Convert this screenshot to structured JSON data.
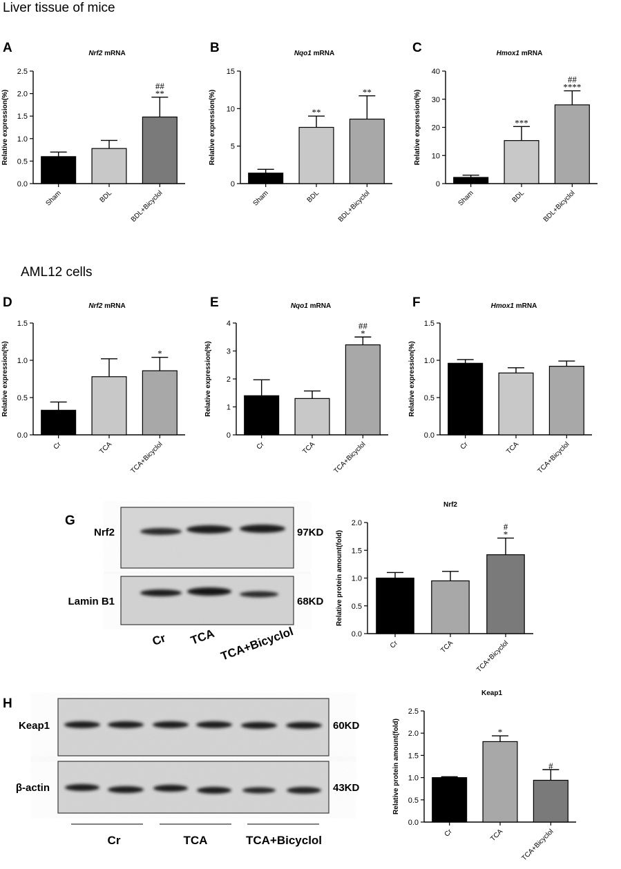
{
  "sections": {
    "liver": "Liver tissue of mice",
    "cells": "AML12 cells"
  },
  "colors": {
    "black": "#000000",
    "light_gray": "#c8c8c8",
    "mid_gray": "#a8a8a8",
    "dark_gray": "#7a7a7a"
  },
  "chart_data": [
    {
      "id": "A",
      "type": "bar",
      "title": "Nrf2",
      "title_suffix": " mRNA",
      "title_italic": true,
      "ylabel": "Relative expression(%)",
      "ylim": [
        0,
        2.5
      ],
      "yticks": [
        "0.0",
        "0.5",
        "1.0",
        "1.5",
        "2.0",
        "2.5"
      ],
      "ytick_values": [
        0,
        0.5,
        1.0,
        1.5,
        2.0,
        2.5
      ],
      "categories": [
        "Sham",
        "BDL",
        "BDL+Bicyclol"
      ],
      "values": [
        0.6,
        0.78,
        1.48
      ],
      "errors": [
        0.1,
        0.18,
        0.44
      ],
      "colors": [
        "#000000",
        "#c8c8c8",
        "#7a7a7a"
      ],
      "annotations": [
        [
          "",
          ""
        ],
        [
          "",
          ""
        ],
        [
          "##",
          "**"
        ]
      ],
      "rotate_labels": true
    },
    {
      "id": "B",
      "type": "bar",
      "title": "Nqo1",
      "title_suffix": " mRNA",
      "title_italic": true,
      "ylabel": "Relative expression(%)",
      "ylim": [
        0,
        15
      ],
      "yticks": [
        "0",
        "5",
        "10",
        "15"
      ],
      "ytick_values": [
        0,
        5,
        10,
        15
      ],
      "categories": [
        "Sham",
        "BDL",
        "BDL+Bicyclol"
      ],
      "values": [
        1.4,
        7.5,
        8.6
      ],
      "errors": [
        0.5,
        1.5,
        3.1
      ],
      "colors": [
        "#000000",
        "#c8c8c8",
        "#a8a8a8"
      ],
      "annotations": [
        [
          "",
          ""
        ],
        [
          "",
          "**"
        ],
        [
          "",
          "**"
        ]
      ],
      "rotate_labels": true
    },
    {
      "id": "C",
      "type": "bar",
      "title": "Hmox1",
      "title_suffix": " mRNA",
      "title_italic": true,
      "ylabel": "Relative expression(%)",
      "ylim": [
        0,
        40
      ],
      "yticks": [
        "0",
        "10",
        "20",
        "30",
        "40"
      ],
      "ytick_values": [
        0,
        10,
        20,
        30,
        40
      ],
      "categories": [
        "Sham",
        "BDL",
        "BDL+Bicyclol"
      ],
      "values": [
        2.2,
        15.3,
        28.0
      ],
      "errors": [
        0.8,
        5.0,
        5.0
      ],
      "colors": [
        "#000000",
        "#c8c8c8",
        "#a8a8a8"
      ],
      "annotations": [
        [
          "",
          ""
        ],
        [
          "",
          "***"
        ],
        [
          "##",
          "****"
        ]
      ],
      "rotate_labels": true
    },
    {
      "id": "D",
      "type": "bar",
      "title": "Nrf2",
      "title_suffix": " mRNA",
      "title_italic": true,
      "ylabel": "Relative expression(%)",
      "ylim": [
        0,
        1.5
      ],
      "yticks": [
        "0.0",
        "0.5",
        "1.0",
        "1.5"
      ],
      "ytick_values": [
        0,
        0.5,
        1.0,
        1.5
      ],
      "categories": [
        "Cr",
        "TCA",
        "TCA+Bicyclol"
      ],
      "values": [
        0.33,
        0.78,
        0.86
      ],
      "errors": [
        0.11,
        0.24,
        0.18
      ],
      "colors": [
        "#000000",
        "#c8c8c8",
        "#a8a8a8"
      ],
      "annotations": [
        [
          "",
          ""
        ],
        [
          "",
          ""
        ],
        [
          "",
          "*"
        ]
      ],
      "rotate_labels": true
    },
    {
      "id": "E",
      "type": "bar",
      "title": "Nqo1",
      "title_suffix": " mRNA",
      "title_italic": true,
      "ylabel": "Relative expression(%)",
      "ylim": [
        0,
        4
      ],
      "yticks": [
        "0",
        "1",
        "2",
        "3",
        "4"
      ],
      "ytick_values": [
        0,
        1,
        2,
        3,
        4
      ],
      "categories": [
        "Cr",
        "TCA",
        "TCA+Bicyclol"
      ],
      "values": [
        1.4,
        1.3,
        3.22
      ],
      "errors": [
        0.57,
        0.27,
        0.28
      ],
      "colors": [
        "#000000",
        "#c8c8c8",
        "#a8a8a8"
      ],
      "annotations": [
        [
          "",
          ""
        ],
        [
          "",
          ""
        ],
        [
          "##",
          "*"
        ]
      ],
      "rotate_labels": true
    },
    {
      "id": "F",
      "type": "bar",
      "title": "Hmox1",
      "title_suffix": " mRNA",
      "title_italic": true,
      "ylabel": "Relative expression(%)",
      "ylim": [
        0,
        1.5
      ],
      "yticks": [
        "0.0",
        "0.5",
        "1.0",
        "1.5"
      ],
      "ytick_values": [
        0,
        0.5,
        1.0,
        1.5
      ],
      "categories": [
        "Cr",
        "TCA",
        "TCA+Bicyclol"
      ],
      "values": [
        0.96,
        0.83,
        0.92
      ],
      "errors": [
        0.05,
        0.07,
        0.07
      ],
      "colors": [
        "#000000",
        "#c8c8c8",
        "#a8a8a8"
      ],
      "annotations": [
        [
          "",
          ""
        ],
        [
          "",
          ""
        ],
        [
          "",
          ""
        ]
      ],
      "rotate_labels": true
    },
    {
      "id": "G",
      "type": "bar",
      "title": "Nrf2",
      "title_suffix": "",
      "title_italic": false,
      "ylabel": "Relative protein amount(fold)",
      "ylim": [
        0,
        2.0
      ],
      "yticks": [
        "0.0",
        "0.5",
        "1.0",
        "1.5",
        "2.0"
      ],
      "ytick_values": [
        0,
        0.5,
        1.0,
        1.5,
        2.0
      ],
      "categories": [
        "Cr",
        "TCA",
        "TCA+Bicyclol"
      ],
      "values": [
        1.0,
        0.95,
        1.42
      ],
      "errors": [
        0.1,
        0.17,
        0.3
      ],
      "colors": [
        "#000000",
        "#a8a8a8",
        "#7a7a7a"
      ],
      "annotations": [
        [
          "",
          ""
        ],
        [
          "",
          ""
        ],
        [
          "#",
          "*"
        ]
      ],
      "rotate_labels": true
    },
    {
      "id": "H",
      "type": "bar",
      "title": "Keap1",
      "title_suffix": "",
      "title_italic": false,
      "ylabel": "Relative protein amount(fold)",
      "ylim": [
        0,
        2.5
      ],
      "yticks": [
        "0.0",
        "0.5",
        "1.0",
        "1.5",
        "2.0",
        "2.5"
      ],
      "ytick_values": [
        0,
        0.5,
        1.0,
        1.5,
        2.0,
        2.5
      ],
      "categories": [
        "Cr",
        "TCA",
        "TCA+Bicyclol"
      ],
      "values": [
        1.0,
        1.81,
        0.94
      ],
      "errors": [
        0.02,
        0.13,
        0.24
      ],
      "colors": [
        "#000000",
        "#a8a8a8",
        "#7a7a7a"
      ],
      "annotations": [
        [
          "",
          ""
        ],
        [
          "",
          "*"
        ],
        [
          "",
          "#"
        ]
      ],
      "rotate_labels": true
    }
  ],
  "blots": {
    "G": {
      "rows": [
        {
          "label": "Nrf2",
          "size": "97KD"
        },
        {
          "label": "Lamin B1",
          "size": "68KD"
        }
      ],
      "categories": [
        "Cr",
        "TCA",
        "TCA+Bicyclol"
      ]
    },
    "H": {
      "rows": [
        {
          "label": "Keap1",
          "size": "60KD"
        },
        {
          "label": "β-actin",
          "size": "43KD"
        }
      ],
      "categories": [
        "Cr",
        "TCA",
        "TCA+Bicyclol"
      ]
    }
  }
}
